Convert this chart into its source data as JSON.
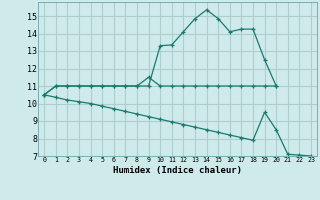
{
  "xlabel": "Humidex (Indice chaleur)",
  "ylabel": "",
  "background_color": "#ceeaea",
  "grid_color": "#aecece",
  "line_color": "#1a7a6e",
  "xlim": [
    -0.5,
    23.5
  ],
  "ylim": [
    7,
    15.8
  ],
  "xticks": [
    0,
    1,
    2,
    3,
    4,
    5,
    6,
    7,
    8,
    9,
    10,
    11,
    12,
    13,
    14,
    15,
    16,
    17,
    18,
    19,
    20,
    21,
    22,
    23
  ],
  "yticks": [
    7,
    8,
    9,
    10,
    11,
    12,
    13,
    14,
    15
  ],
  "line1_x": [
    0,
    1,
    2,
    3,
    4,
    5,
    6,
    7,
    8,
    9,
    10,
    11,
    12,
    13,
    14,
    15,
    16,
    17,
    18,
    19,
    20
  ],
  "line1_y": [
    10.5,
    11.0,
    11.0,
    11.0,
    11.0,
    11.0,
    11.0,
    11.0,
    11.0,
    11.0,
    13.3,
    13.35,
    14.1,
    14.85,
    15.35,
    14.85,
    14.1,
    14.25,
    14.25,
    12.5,
    11.0
  ],
  "line2_x": [
    0,
    1,
    2,
    3,
    4,
    5,
    6,
    7,
    8,
    9,
    10,
    11,
    12,
    13,
    14,
    15,
    16,
    17,
    18,
    19,
    20
  ],
  "line2_y": [
    10.5,
    11.0,
    11.0,
    11.0,
    11.0,
    11.0,
    11.0,
    11.0,
    11.0,
    11.5,
    11.0,
    11.0,
    11.0,
    11.0,
    11.0,
    11.0,
    11.0,
    11.0,
    11.0,
    11.0,
    11.0
  ],
  "line3_x": [
    0,
    1,
    2,
    3,
    4,
    5,
    6,
    7,
    8,
    9,
    10,
    11,
    12,
    13,
    14,
    15,
    16,
    17,
    18,
    19,
    20,
    21,
    22,
    23
  ],
  "line3_y": [
    10.5,
    10.35,
    10.2,
    10.1,
    10.0,
    9.85,
    9.7,
    9.55,
    9.4,
    9.25,
    9.1,
    8.95,
    8.8,
    8.65,
    8.5,
    8.35,
    8.2,
    8.05,
    7.9,
    9.5,
    8.5,
    7.1,
    7.05,
    7.0
  ]
}
